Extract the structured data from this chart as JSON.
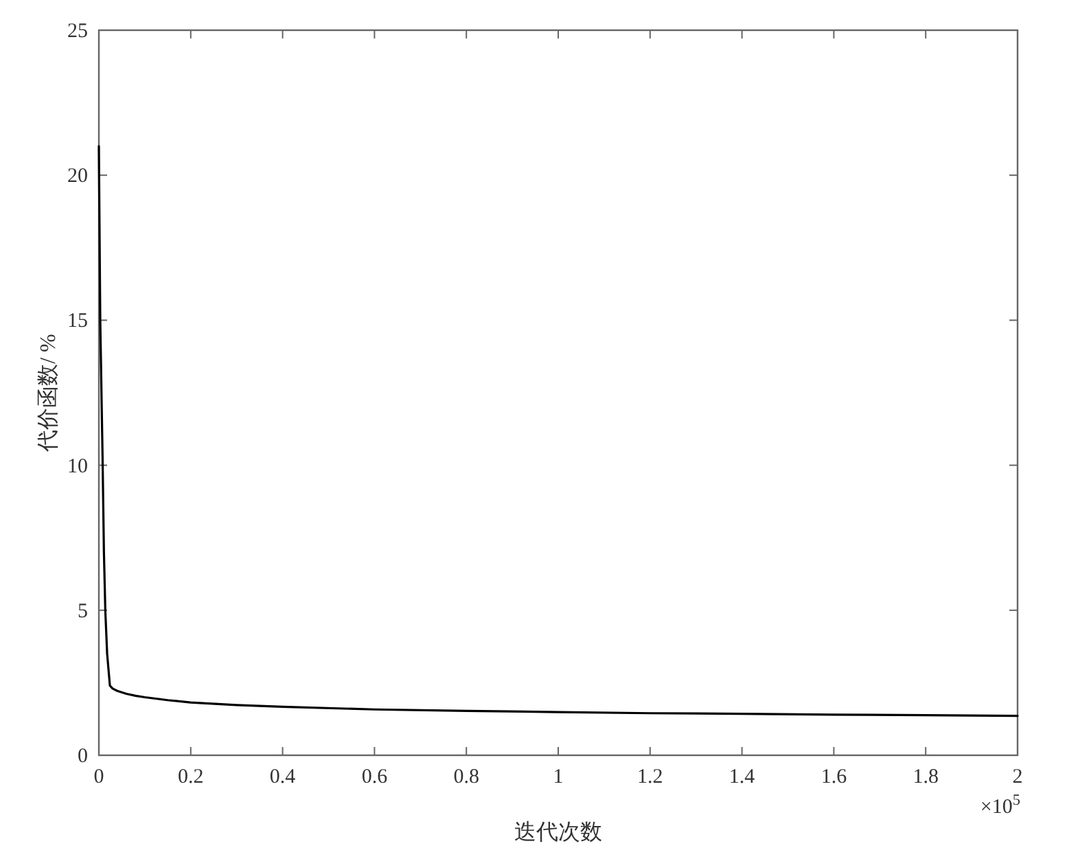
{
  "chart_data": {
    "type": "line",
    "xlabel": "迭代次数",
    "ylabel": "代价函数/ %",
    "annotations": [
      "×10$^{5}$"
    ],
    "xlim": [
      0,
      2
    ],
    "ylim": [
      0,
      25
    ],
    "xticks": [
      0,
      0.2,
      0.4,
      0.6,
      0.8,
      1,
      1.2,
      1.4,
      1.6,
      1.8,
      2
    ],
    "yticks": [
      0,
      5,
      10,
      15,
      20,
      25
    ],
    "grid": false,
    "series": [
      {
        "color": "#000000",
        "x": [
          0,
          0.003,
          0.008,
          0.011,
          0.014,
          0.018,
          0.024,
          0.03,
          0.04,
          0.06,
          0.08,
          0.1,
          0.15,
          0.2,
          0.3,
          0.4,
          0.6,
          0.8,
          1,
          1.2,
          1.4,
          1.6,
          1.8,
          2
        ],
        "values": [
          21,
          15,
          10.3,
          7,
          5,
          3.5,
          2.4,
          2.3,
          2.22,
          2.12,
          2.05,
          2,
          1.9,
          1.82,
          1.73,
          1.67,
          1.58,
          1.53,
          1.49,
          1.45,
          1.43,
          1.4,
          1.38,
          1.36
        ]
      }
    ]
  }
}
